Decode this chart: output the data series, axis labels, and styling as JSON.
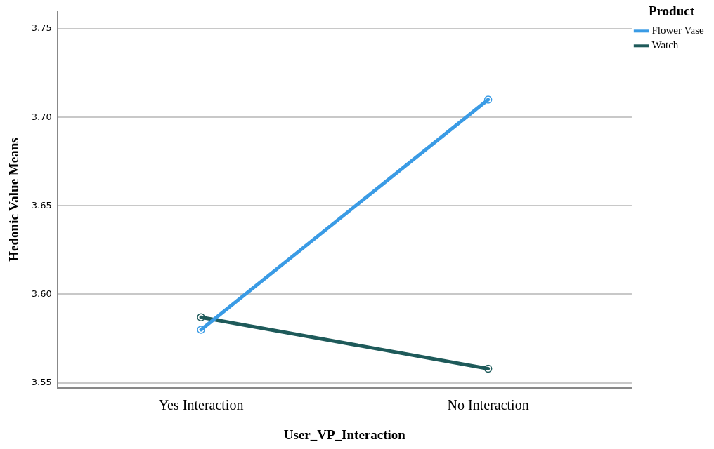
{
  "chart_data": {
    "type": "line",
    "xlabel": "User_VP_Interaction",
    "ylabel": "Hedonic Value Means",
    "legend_title": "Product",
    "legend": "top right",
    "grid": "y",
    "marker": "circle",
    "line_style": "solid",
    "categories": [
      "Yes Interaction",
      "No Interaction"
    ],
    "ylim": [
      3.547,
      3.76
    ],
    "yticks": [
      {
        "value": 3.55,
        "label": "3.55"
      },
      {
        "value": 3.6,
        "label": "3.60"
      },
      {
        "value": 3.65,
        "label": "3.65"
      },
      {
        "value": 3.7,
        "label": "3.70"
      },
      {
        "value": 3.75,
        "label": "3.75"
      }
    ],
    "series": [
      {
        "name": "Flower Vase",
        "color": "#3a9be5",
        "values": [
          3.58,
          3.71
        ]
      },
      {
        "name": "Watch",
        "color": "#1e5a5a",
        "values": [
          3.587,
          3.558
        ]
      }
    ]
  }
}
